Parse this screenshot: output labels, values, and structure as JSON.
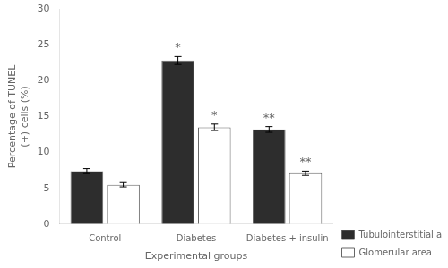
{
  "chart_data": {
    "type": "bar",
    "categories": [
      "Control",
      "Diabetes",
      "Diabetes + insulin"
    ],
    "series": [
      {
        "name": "Tubulointerstitial area",
        "color": "#2d2d2d",
        "values": [
          7.4,
          22.8,
          13.2
        ],
        "errors": [
          0.35,
          0.55,
          0.4
        ],
        "annotations": [
          null,
          "*",
          "**"
        ]
      },
      {
        "name": "Glomerular area",
        "color": "#ffffff",
        "values": [
          5.5,
          13.5,
          7.1
        ],
        "errors": [
          0.3,
          0.45,
          0.3
        ],
        "annotations": [
          null,
          "*",
          "**"
        ]
      }
    ],
    "xlabel": "Experimental groups",
    "ylabel": "Percentage of TUNEL\n(+) cells (%)",
    "ylim": [
      0,
      30
    ],
    "yticks": [
      0,
      5,
      10,
      15,
      20,
      25,
      30
    ],
    "grid": false,
    "legend": "lower right"
  }
}
